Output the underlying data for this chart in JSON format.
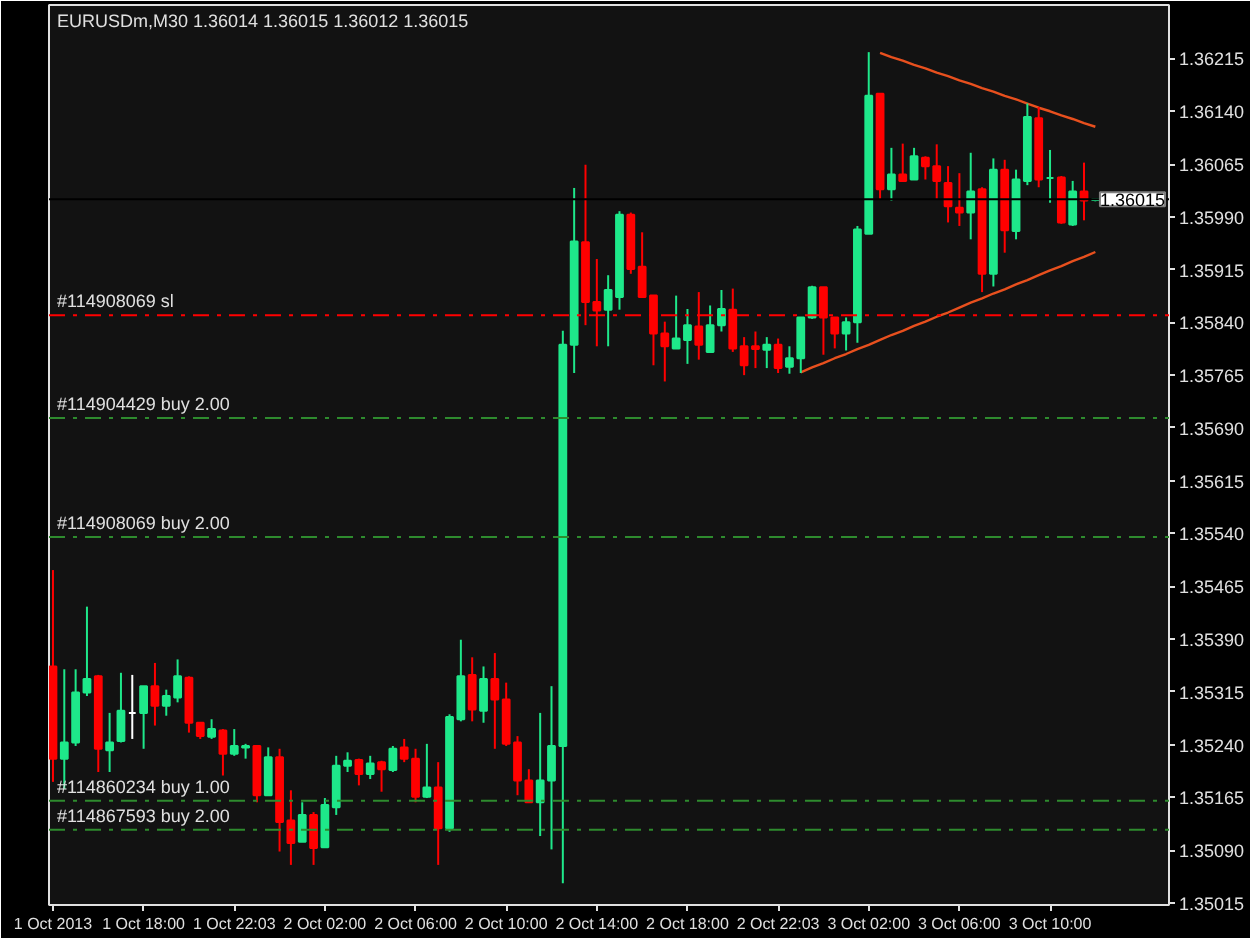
{
  "chart_data": {
    "type": "candlestick",
    "title": "EURUSDm,M30  1.36014 1.36015 1.36012 1.36015",
    "categories": [
      "1 Oct 2013",
      null,
      null,
      null,
      null,
      null,
      null,
      null,
      "1 Oct 18:00",
      null,
      null,
      null,
      null,
      null,
      null,
      null,
      "1 Oct 22:03",
      null,
      null,
      null,
      null,
      null,
      null,
      null,
      "2 Oct 02:00",
      null,
      null,
      null,
      null,
      null,
      null,
      null,
      "2 Oct 06:00",
      null,
      null,
      null,
      null,
      null,
      null,
      null,
      "2 Oct 10:00",
      null,
      null,
      null,
      null,
      null,
      null,
      null,
      "2 Oct 14:00",
      null,
      null,
      null,
      null,
      null,
      null,
      null,
      "2 Oct 18:00",
      null,
      null,
      null,
      null,
      null,
      null,
      null,
      "2 Oct 22:03",
      null,
      null,
      null,
      null,
      null,
      null,
      null,
      "3 Oct 02:00",
      null,
      null,
      null,
      null,
      null,
      null,
      null,
      "3 Oct 06:00",
      null,
      null,
      null,
      null,
      null,
      null,
      null,
      "3 Oct 10:00",
      null,
      null,
      null,
      null
    ],
    "ohlc": [
      [
        1.35351,
        1.35488,
        1.35187,
        1.3522
      ],
      [
        1.3522,
        1.35347,
        1.35177,
        1.35243
      ],
      [
        1.35243,
        1.35347,
        1.35238,
        1.35314
      ],
      [
        1.35314,
        1.35436,
        1.35309,
        1.35333
      ],
      [
        1.35337,
        1.35339,
        1.35201,
        1.35234
      ],
      [
        1.35232,
        1.35285,
        1.35201,
        1.35243
      ],
      [
        1.35245,
        1.35342,
        1.35243,
        1.35288
      ],
      [
        1.35285,
        1.35339,
        1.35248,
        1.35285
      ],
      [
        1.35285,
        1.35323,
        1.35234,
        1.35323
      ],
      [
        1.35323,
        1.35356,
        1.35267,
        1.35295
      ],
      [
        1.35295,
        1.35318,
        1.35281,
        1.35309
      ],
      [
        1.35307,
        1.35361,
        1.353,
        1.35337
      ],
      [
        1.35335,
        1.35337,
        1.35257,
        1.35271
      ],
      [
        1.35271,
        1.35271,
        1.35248,
        1.35252
      ],
      [
        1.35251,
        1.35276,
        1.35248,
        1.35262
      ],
      [
        1.3526,
        1.35262,
        1.35196,
        1.35227
      ],
      [
        1.35227,
        1.35262,
        1.35224,
        1.35238
      ],
      [
        1.35236,
        1.35241,
        1.3522,
        1.35238
      ],
      [
        1.35238,
        1.35238,
        1.35158,
        1.35168
      ],
      [
        1.35168,
        1.35236,
        1.35168,
        1.35222
      ],
      [
        1.35222,
        1.35234,
        1.35088,
        1.3513
      ],
      [
        1.35132,
        1.35175,
        1.35069,
        1.351
      ],
      [
        1.35102,
        1.35158,
        1.35102,
        1.3514
      ],
      [
        1.3514,
        1.35144,
        1.35069,
        1.35093
      ],
      [
        1.35094,
        1.35164,
        1.35093,
        1.35154
      ],
      [
        1.35151,
        1.35224,
        1.3514,
        1.3521
      ],
      [
        1.3521,
        1.35229,
        1.35201,
        1.35217
      ],
      [
        1.35218,
        1.3522,
        1.35182,
        1.35198
      ],
      [
        1.35198,
        1.35224,
        1.35191,
        1.35213
      ],
      [
        1.35215,
        1.35217,
        1.35173,
        1.35205
      ],
      [
        1.35204,
        1.35238,
        1.35201,
        1.35234
      ],
      [
        1.35236,
        1.35248,
        1.35215,
        1.3522
      ],
      [
        1.3522,
        1.35234,
        1.35158,
        1.35166
      ],
      [
        1.35166,
        1.35241,
        1.35164,
        1.35179
      ],
      [
        1.35179,
        1.35215,
        1.35069,
        1.35121
      ],
      [
        1.35121,
        1.35283,
        1.35116,
        1.35279
      ],
      [
        1.35276,
        1.35389,
        1.35273,
        1.35337
      ],
      [
        1.35339,
        1.35364,
        1.35273,
        1.3529
      ],
      [
        1.35288,
        1.35351,
        1.35271,
        1.35333
      ],
      [
        1.35333,
        1.3537,
        1.35234,
        1.35304
      ],
      [
        1.35304,
        1.35328,
        1.35238,
        1.35241
      ],
      [
        1.35243,
        1.35252,
        1.35168,
        1.35189
      ],
      [
        1.35189,
        1.35205,
        1.35157,
        1.35158
      ],
      [
        1.35158,
        1.35285,
        1.3511,
        1.35189
      ],
      [
        1.35189,
        1.35323,
        1.35091,
        1.35238
      ],
      [
        1.35238,
        1.35828,
        1.35043,
        1.35808
      ],
      [
        1.35808,
        1.36031,
        1.35768,
        1.35955
      ],
      [
        1.35954,
        1.36064,
        1.35836,
        1.35869
      ],
      [
        1.35869,
        1.3593,
        1.35806,
        1.35857
      ],
      [
        1.35858,
        1.35907,
        1.35806,
        1.35886
      ],
      [
        1.35876,
        1.35998,
        1.35858,
        1.35993
      ],
      [
        1.35993,
        1.35996,
        1.35909,
        1.35916
      ],
      [
        1.35919,
        1.35968,
        1.35876,
        1.35876
      ],
      [
        1.35878,
        1.35878,
        1.35779,
        1.35824
      ],
      [
        1.35824,
        1.35841,
        1.35756,
        1.35806
      ],
      [
        1.35803,
        1.35878,
        1.35803,
        1.35817
      ],
      [
        1.35815,
        1.35859,
        1.35781,
        1.35836
      ],
      [
        1.35834,
        1.35883,
        1.35787,
        1.35808
      ],
      [
        1.35798,
        1.35864,
        1.35798,
        1.35836
      ],
      [
        1.35836,
        1.35886,
        1.35827,
        1.35859
      ],
      [
        1.35858,
        1.35888,
        1.35798,
        1.35803
      ],
      [
        1.35806,
        1.35819,
        1.35765,
        1.35779
      ],
      [
        1.35806,
        1.35827,
        1.35775,
        1.35802
      ],
      [
        1.35801,
        1.35819,
        1.35775,
        1.35808
      ],
      [
        1.35808,
        1.35817,
        1.35768,
        1.35775
      ],
      [
        1.35777,
        1.35806,
        1.35767,
        1.35789
      ],
      [
        1.35789,
        1.35847,
        1.35768,
        1.35847
      ],
      [
        1.35847,
        1.35892,
        1.35845,
        1.3589
      ],
      [
        1.3589,
        1.3589,
        1.35794,
        1.35847
      ],
      [
        1.35847,
        1.35847,
        1.35803,
        1.35824
      ],
      [
        1.35824,
        1.35847,
        1.358,
        1.3584
      ],
      [
        1.3584,
        1.35977,
        1.35811,
        1.35972
      ],
      [
        1.35966,
        1.36224,
        1.35966,
        1.36162
      ],
      [
        1.36165,
        1.36165,
        1.36015,
        1.36029
      ],
      [
        1.36029,
        1.36088,
        1.36013,
        1.3605
      ],
      [
        1.3605,
        1.36094,
        1.36041,
        1.36041
      ],
      [
        1.36043,
        1.36088,
        1.36043,
        1.36076
      ],
      [
        1.36074,
        1.36076,
        1.36043,
        1.36062
      ],
      [
        1.36062,
        1.36093,
        1.36015,
        1.36041
      ],
      [
        1.36038,
        1.36062,
        1.35982,
        1.36005
      ],
      [
        1.36003,
        1.36052,
        1.35977,
        1.35996
      ],
      [
        1.35996,
        1.36081,
        1.35958,
        1.36026
      ],
      [
        1.36029,
        1.36032,
        1.35883,
        1.35909
      ],
      [
        1.35909,
        1.36073,
        1.35891,
        1.36057
      ],
      [
        1.36057,
        1.36071,
        1.35939,
        1.35971
      ],
      [
        1.3597,
        1.36057,
        1.35958,
        1.36043
      ],
      [
        1.36041,
        1.36151,
        1.36035,
        1.36132
      ],
      [
        1.3613,
        1.36146,
        1.36032,
        1.36043
      ],
      [
        1.36045,
        1.36085,
        1.3601,
        1.36045
      ],
      [
        1.36046,
        1.36048,
        1.3598,
        1.35982
      ],
      [
        1.35979,
        1.36041,
        1.35977,
        1.36026
      ],
      [
        1.36026,
        1.36067,
        1.35985,
        1.36013
      ],
      [
        1.36014,
        1.36015,
        1.36012,
        1.36015
      ]
    ],
    "colors": [
      "#ff0000",
      "#1ee88a",
      "#1ee88a",
      "#1ee88a",
      "#ff0000",
      "#1ee88a",
      "#1ee88a",
      "#ffffff",
      "#1ee88a",
      "#ff0000",
      "#1ee88a",
      "#1ee88a",
      "#ff0000",
      "#ff0000",
      "#1ee88a",
      "#ff0000",
      "#1ee88a",
      "#1ee88a",
      "#ff0000",
      "#1ee88a",
      "#ff0000",
      "#ff0000",
      "#1ee88a",
      "#ff0000",
      "#1ee88a",
      "#1ee88a",
      "#1ee88a",
      "#ff0000",
      "#1ee88a",
      "#ff0000",
      "#1ee88a",
      "#ff0000",
      "#ff0000",
      "#1ee88a",
      "#ff0000",
      "#1ee88a",
      "#1ee88a",
      "#ff0000",
      "#1ee88a",
      "#ff0000",
      "#ff0000",
      "#ff0000",
      "#ff0000",
      "#1ee88a",
      "#1ee88a",
      "#1ee88a",
      "#1ee88a",
      "#ff0000",
      "#ff0000",
      "#1ee88a",
      "#1ee88a",
      "#ff0000",
      "#ff0000",
      "#ff0000",
      "#ff0000",
      "#1ee88a",
      "#1ee88a",
      "#ff0000",
      "#1ee88a",
      "#1ee88a",
      "#ff0000",
      "#ff0000",
      "#ff0000",
      "#1ee88a",
      "#ff0000",
      "#1ee88a",
      "#1ee88a",
      "#1ee88a",
      "#ff0000",
      "#ff0000",
      "#1ee88a",
      "#1ee88a",
      "#1ee88a",
      "#ff0000",
      "#1ee88a",
      "#ff0000",
      "#1ee88a",
      "#ff0000",
      "#ff0000",
      "#ff0000",
      "#ff0000",
      "#1ee88a",
      "#ff0000",
      "#1ee88a",
      "#ff0000",
      "#1ee88a",
      "#1ee88a",
      "#ff0000",
      "#1ee88a",
      "#ff0000",
      "#1ee88a",
      "#ff0000",
      "#1ee88a"
    ],
    "series": [
      {
        "type": "line",
        "color": "#e8501e",
        "values": [
          null,
          null,
          null,
          null,
          null,
          null,
          null,
          null,
          null,
          null,
          null,
          null,
          null,
          null,
          null,
          null,
          null,
          null,
          null,
          null,
          null,
          null,
          null,
          null,
          null,
          null,
          null,
          null,
          null,
          null,
          null,
          null,
          null,
          null,
          null,
          null,
          null,
          null,
          null,
          null,
          null,
          null,
          null,
          null,
          null,
          null,
          null,
          null,
          null,
          null,
          null,
          null,
          null,
          null,
          null,
          null,
          null,
          null,
          null,
          null,
          null,
          null,
          null,
          null,
          null,
          null,
          null,
          null,
          null,
          null,
          null,
          null,
          null,
          1.36223,
          1.36217,
          1.36212,
          1.36206,
          1.36201,
          1.36195,
          1.3619,
          1.36184,
          1.36179,
          1.36173,
          1.36168,
          1.36162,
          1.36157,
          1.36151,
          1.36145,
          1.3614,
          1.36134,
          1.36129,
          1.36123,
          1.36118
        ]
      },
      {
        "type": "line",
        "color": "#e8501e",
        "values": [
          null,
          null,
          null,
          null,
          null,
          null,
          null,
          null,
          null,
          null,
          null,
          null,
          null,
          null,
          null,
          null,
          null,
          null,
          null,
          null,
          null,
          null,
          null,
          null,
          null,
          null,
          null,
          null,
          null,
          null,
          null,
          null,
          null,
          null,
          null,
          null,
          null,
          null,
          null,
          null,
          null,
          null,
          null,
          null,
          null,
          null,
          null,
          null,
          null,
          null,
          null,
          null,
          null,
          null,
          null,
          null,
          null,
          null,
          null,
          null,
          null,
          null,
          null,
          null,
          null,
          null,
          1.35769,
          1.35776,
          1.35782,
          1.35789,
          1.35795,
          1.35802,
          1.35808,
          1.35815,
          1.35822,
          1.35828,
          1.35835,
          1.35841,
          1.35848,
          1.35854,
          1.35861,
          1.35868,
          1.35874,
          1.35881,
          1.35887,
          1.35894,
          1.359,
          1.35907,
          1.35914,
          1.3592,
          1.35927,
          1.35933,
          1.3594
        ]
      }
    ],
    "ref_lines": [
      {
        "axis": "y",
        "value": 1.3585,
        "label": "#114908069 sl",
        "color": "#ff0000",
        "line_style": "dashed"
      },
      {
        "axis": "y",
        "value": 1.35704,
        "label": "#114904429 buy 2.00",
        "color": "#2e8b2e",
        "line_style": "dashed"
      },
      {
        "axis": "y",
        "value": 1.35535,
        "label": "#114908069 buy 2.00",
        "color": "#2e8b2e",
        "line_style": "dashed"
      },
      {
        "axis": "y",
        "value": 1.3516,
        "label": "#114860234 buy 1.00",
        "color": "#2e8b2e",
        "line_style": "dashed"
      },
      {
        "axis": "y",
        "value": 1.35119,
        "label": "#114867593 buy 2.00",
        "color": "#2e8b2e",
        "line_style": "dashed"
      },
      {
        "axis": "y",
        "value": 1.36015,
        "label": "1.36015",
        "color": "#000000",
        "line_style": "solid"
      }
    ],
    "ylim": [
      1.35012,
      1.36291
    ],
    "yticks": [
      1.35015,
      {
        "value": 1.3509,
        "label": "1.35090"
      },
      1.35165,
      {
        "value": 1.3524,
        "label": "1.35240"
      },
      1.35315,
      {
        "value": 1.3539,
        "label": "1.35390"
      },
      1.35465,
      {
        "value": 1.3554,
        "label": "1.35540"
      },
      1.35615,
      {
        "value": 1.3569,
        "label": "1.35690"
      },
      1.35765,
      {
        "value": 1.3584,
        "label": "1.35840"
      },
      1.35915,
      {
        "value": 1.3599,
        "label": "1.35990"
      },
      1.36065,
      {
        "value": 1.3614,
        "label": "1.36140"
      },
      1.36215
    ],
    "grid": false
  }
}
